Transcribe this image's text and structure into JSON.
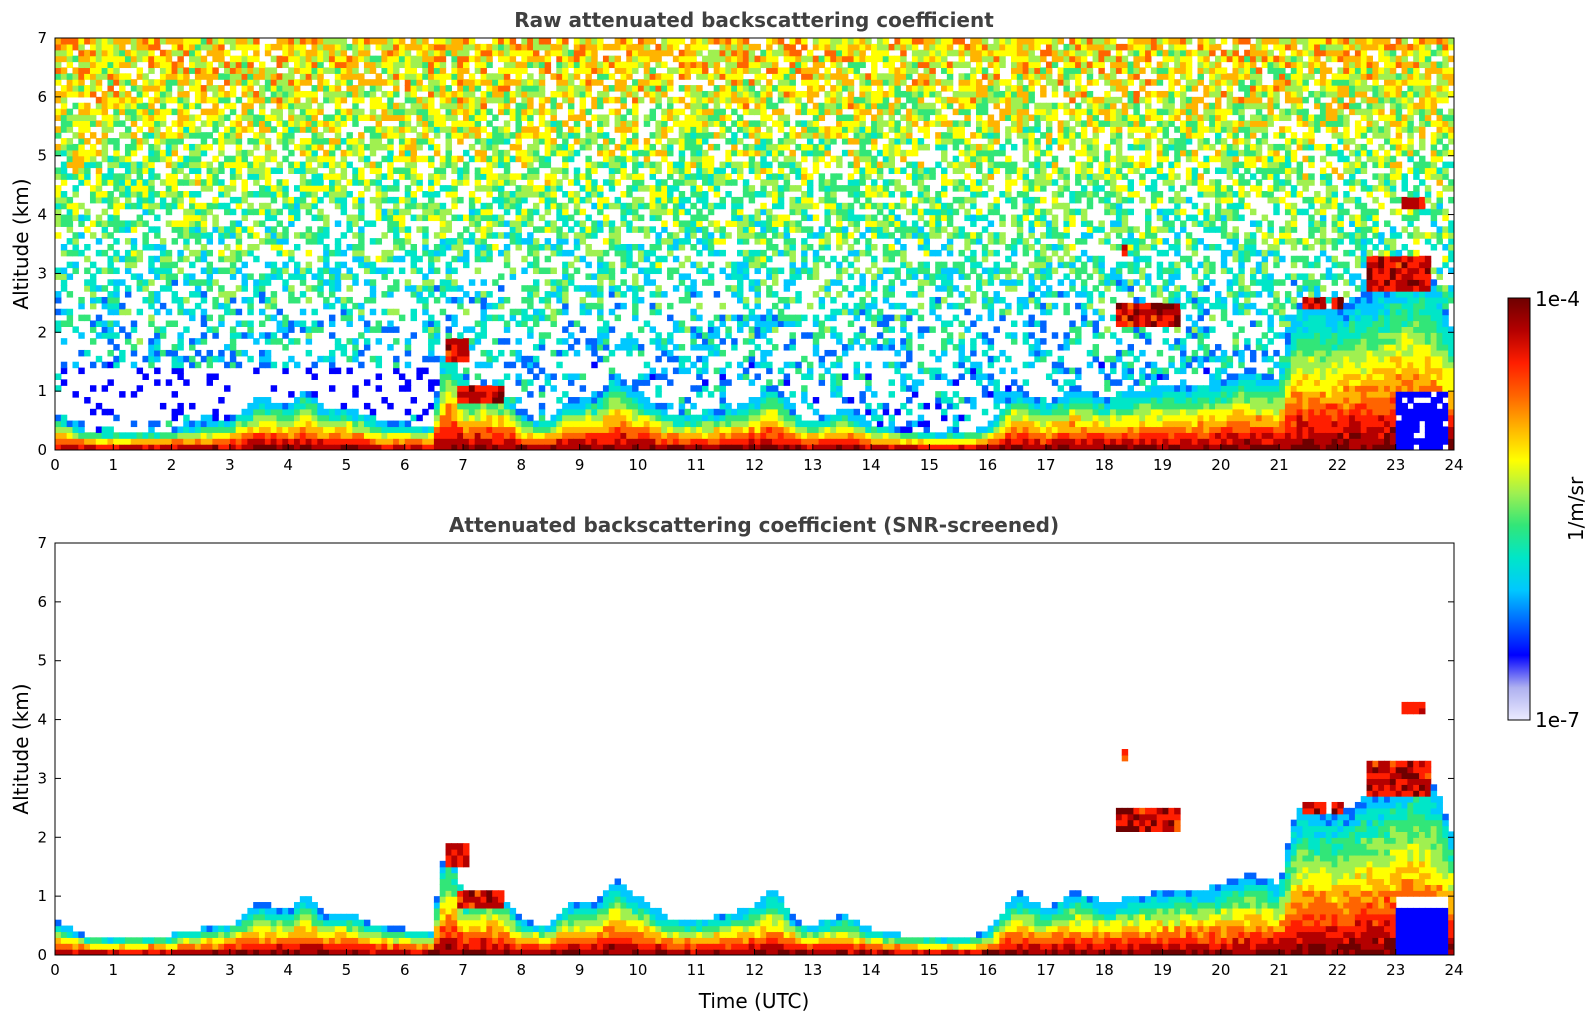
{
  "chart_data": [
    {
      "type": "heatmap",
      "title": "Raw attenuated backscattering coefficient",
      "xlabel": "",
      "ylabel": "Altitude (km)",
      "xlim": [
        0,
        24
      ],
      "ylim": [
        0,
        7
      ],
      "xticks": [
        "0",
        "1",
        "2",
        "3",
        "4",
        "5",
        "6",
        "7",
        "8",
        "9",
        "10",
        "11",
        "12",
        "13",
        "14",
        "15",
        "16",
        "17",
        "18",
        "19",
        "20",
        "21",
        "22",
        "23",
        "24"
      ],
      "yticks": [
        "0",
        "1",
        "2",
        "3",
        "4",
        "5",
        "6",
        "7"
      ],
      "noise_above_layers": true,
      "layer_top_km": [
        [
          0,
          0.6
        ],
        [
          0.5,
          0.35
        ],
        [
          1,
          0.3
        ],
        [
          1.5,
          0.35
        ],
        [
          2,
          0.35
        ],
        [
          2.5,
          0.45
        ],
        [
          3,
          0.5
        ],
        [
          3.5,
          0.9
        ],
        [
          4,
          0.75
        ],
        [
          4.3,
          1.1
        ],
        [
          4.6,
          0.7
        ],
        [
          5,
          0.75
        ],
        [
          5.5,
          0.5
        ],
        [
          6,
          0.45
        ],
        [
          6.5,
          0.4
        ],
        [
          6.6,
          1.5
        ],
        [
          6.8,
          1.9
        ],
        [
          7,
          1.0
        ],
        [
          7.5,
          1.15
        ],
        [
          7.8,
          0.9
        ],
        [
          8,
          0.6
        ],
        [
          8.5,
          0.5
        ],
        [
          8.8,
          0.9
        ],
        [
          9.3,
          0.9
        ],
        [
          9.6,
          1.3
        ],
        [
          10,
          1.0
        ],
        [
          10.5,
          0.65
        ],
        [
          11,
          0.6
        ],
        [
          11.5,
          0.7
        ],
        [
          12,
          0.85
        ],
        [
          12.3,
          1.2
        ],
        [
          12.7,
          0.6
        ],
        [
          13,
          0.5
        ],
        [
          13.5,
          0.7
        ],
        [
          14,
          0.45
        ],
        [
          14.5,
          0.35
        ],
        [
          15,
          0.3
        ],
        [
          15.5,
          0.3
        ],
        [
          16,
          0.4
        ],
        [
          16.5,
          1.1
        ],
        [
          17,
          0.8
        ],
        [
          17.5,
          1.1
        ],
        [
          18,
          0.9
        ],
        [
          18.5,
          1.0
        ],
        [
          19,
          1.1
        ],
        [
          19.5,
          1.1
        ],
        [
          20,
          1.2
        ],
        [
          20.5,
          1.4
        ],
        [
          21,
          1.2
        ],
        [
          21.3,
          2.5
        ],
        [
          21.6,
          2.5
        ],
        [
          22,
          2.4
        ],
        [
          22.5,
          2.7
        ],
        [
          23,
          3.0
        ],
        [
          23.4,
          3.2
        ],
        [
          23.7,
          2.9
        ],
        [
          24,
          2.0
        ]
      ],
      "elevated_layers_km": [
        {
          "x0": 6.7,
          "x1": 7.1,
          "y0": 1.5,
          "y1": 1.85
        },
        {
          "x0": 6.9,
          "x1": 7.7,
          "y0": 0.85,
          "y1": 1.1
        },
        {
          "x0": 18.2,
          "x1": 19.3,
          "y0": 2.1,
          "y1": 2.5
        },
        {
          "x0": 18.3,
          "x1": 18.4,
          "y0": 3.3,
          "y1": 3.5
        },
        {
          "x0": 21.4,
          "x1": 21.8,
          "y0": 2.45,
          "y1": 2.6
        },
        {
          "x0": 21.9,
          "x1": 22.1,
          "y0": 2.45,
          "y1": 2.6
        },
        {
          "x0": 22.5,
          "x1": 23.6,
          "y0": 2.7,
          "y1": 3.3
        },
        {
          "x0": 23.1,
          "x1": 23.5,
          "y0": 4.15,
          "y1": 4.35
        }
      ],
      "clear_region_km": {
        "x0": 23.0,
        "x1": 23.9,
        "y0": 0,
        "y1": 1.0
      },
      "low_signal_region_km": {
        "x0": 0.1,
        "x1": 6.6,
        "y0": 0.6,
        "y1": 1.4
      }
    },
    {
      "type": "heatmap",
      "title": "Attenuated backscattering coefficient (SNR-screened)",
      "xlabel": "Time (UTC)",
      "ylabel": "Altitude (km)",
      "xlim": [
        0,
        24
      ],
      "ylim": [
        0,
        7
      ],
      "xticks": [
        "0",
        "1",
        "2",
        "3",
        "4",
        "5",
        "6",
        "7",
        "8",
        "9",
        "10",
        "11",
        "12",
        "13",
        "14",
        "15",
        "16",
        "17",
        "18",
        "19",
        "20",
        "21",
        "22",
        "23",
        "24"
      ],
      "yticks": [
        "0",
        "1",
        "2",
        "3",
        "4",
        "5",
        "6",
        "7"
      ],
      "noise_above_layers": false,
      "layer_top_km": [
        [
          0,
          0.6
        ],
        [
          0.5,
          0.35
        ],
        [
          1,
          0.3
        ],
        [
          1.5,
          0.35
        ],
        [
          2,
          0.35
        ],
        [
          2.5,
          0.45
        ],
        [
          3,
          0.5
        ],
        [
          3.5,
          0.9
        ],
        [
          4,
          0.75
        ],
        [
          4.3,
          1.1
        ],
        [
          4.6,
          0.7
        ],
        [
          5,
          0.75
        ],
        [
          5.5,
          0.5
        ],
        [
          6,
          0.45
        ],
        [
          6.5,
          0.4
        ],
        [
          6.6,
          1.5
        ],
        [
          6.8,
          1.9
        ],
        [
          7,
          1.0
        ],
        [
          7.5,
          1.15
        ],
        [
          7.8,
          0.9
        ],
        [
          8,
          0.6
        ],
        [
          8.5,
          0.5
        ],
        [
          8.8,
          0.9
        ],
        [
          9.3,
          0.9
        ],
        [
          9.6,
          1.3
        ],
        [
          10,
          1.0
        ],
        [
          10.5,
          0.65
        ],
        [
          11,
          0.6
        ],
        [
          11.5,
          0.7
        ],
        [
          12,
          0.85
        ],
        [
          12.3,
          1.2
        ],
        [
          12.7,
          0.6
        ],
        [
          13,
          0.5
        ],
        [
          13.5,
          0.7
        ],
        [
          14,
          0.45
        ],
        [
          14.5,
          0.35
        ],
        [
          15,
          0.3
        ],
        [
          15.5,
          0.3
        ],
        [
          16,
          0.4
        ],
        [
          16.5,
          1.1
        ],
        [
          17,
          0.8
        ],
        [
          17.5,
          1.1
        ],
        [
          18,
          0.9
        ],
        [
          18.5,
          1.0
        ],
        [
          19,
          1.1
        ],
        [
          19.5,
          1.1
        ],
        [
          20,
          1.2
        ],
        [
          20.5,
          1.4
        ],
        [
          21,
          1.2
        ],
        [
          21.3,
          2.5
        ],
        [
          21.6,
          2.5
        ],
        [
          22,
          2.4
        ],
        [
          22.5,
          2.7
        ],
        [
          23,
          3.0
        ],
        [
          23.4,
          3.2
        ],
        [
          23.7,
          2.9
        ],
        [
          24,
          2.0
        ]
      ],
      "elevated_layers_km": [
        {
          "x0": 6.7,
          "x1": 7.1,
          "y0": 1.5,
          "y1": 1.85
        },
        {
          "x0": 6.9,
          "x1": 7.7,
          "y0": 0.85,
          "y1": 1.1
        },
        {
          "x0": 18.2,
          "x1": 19.3,
          "y0": 2.1,
          "y1": 2.5
        },
        {
          "x0": 18.3,
          "x1": 18.4,
          "y0": 3.3,
          "y1": 3.5
        },
        {
          "x0": 21.4,
          "x1": 21.8,
          "y0": 2.45,
          "y1": 2.6
        },
        {
          "x0": 21.9,
          "x1": 22.1,
          "y0": 2.45,
          "y1": 2.6
        },
        {
          "x0": 22.5,
          "x1": 23.6,
          "y0": 2.7,
          "y1": 3.3
        },
        {
          "x0": 23.1,
          "x1": 23.5,
          "y0": 4.15,
          "y1": 4.35
        }
      ],
      "clear_region_km": {
        "x0": 23.0,
        "x1": 23.9,
        "y0": 0,
        "y1": 1.0
      },
      "low_signal_region_km": null
    }
  ],
  "colorbar": {
    "label": "1/m/sr",
    "max_label": "1e-4",
    "min_label": "1e-7",
    "scale": "log",
    "range": [
      1e-07,
      0.0001
    ],
    "colormap": [
      "#ebebff",
      "#aeb0f0",
      "#0000ff",
      "#0064ff",
      "#00c8ff",
      "#00e6c8",
      "#32e678",
      "#a0f050",
      "#ffff00",
      "#ffb400",
      "#ff6400",
      "#ff1e00",
      "#b40000",
      "#6e0000"
    ]
  }
}
